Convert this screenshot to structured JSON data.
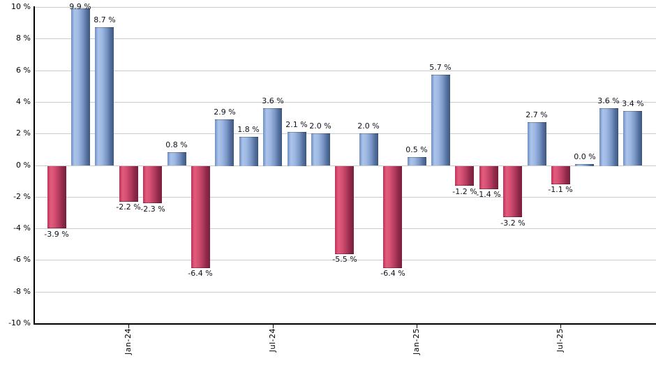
{
  "chart_data": {
    "type": "bar",
    "title": "",
    "xlabel": "",
    "ylabel": "",
    "ylim": [
      -10,
      10
    ],
    "y_step": 2,
    "grid": true,
    "legend": false,
    "values": [
      -3.9,
      9.9,
      8.7,
      -2.2,
      -2.3,
      0.8,
      -6.4,
      2.9,
      1.8,
      3.6,
      2.1,
      2.0,
      -5.5,
      2.0,
      -6.4,
      0.5,
      5.7,
      -1.2,
      -1.4,
      -3.2,
      2.7,
      -1.1,
      0.0,
      3.6,
      3.4
    ],
    "bar_labels": [
      "-3.9 %",
      "9.9 %",
      "8.7 %",
      "-2.2 %",
      "-2.3 %",
      "0.8 %",
      "-6.4 %",
      "2.9 %",
      "1.8 %",
      "3.6 %",
      "2.1 %",
      "2.0 %",
      "-5.5 %",
      "2.0 %",
      "-6.4 %",
      "0.5 %",
      "5.7 %",
      "-1.2 %",
      "-1.4 %",
      "-3.2 %",
      "2.7 %",
      "-1.1 %",
      "0.0 %",
      "3.6 %",
      "3.4 %"
    ],
    "x_tick_labels": [
      {
        "index": 3,
        "label": "Jan-24"
      },
      {
        "index": 9,
        "label": "Jul-24"
      },
      {
        "index": 15,
        "label": "Jan-25"
      },
      {
        "index": 21,
        "label": "Jul-25"
      }
    ],
    "y_tick_labels": [
      {
        "value": 10,
        "label": "10 %"
      },
      {
        "value": 8,
        "label": "8 %"
      },
      {
        "value": 6,
        "label": "6 %"
      },
      {
        "value": 4,
        "label": "4 %"
      },
      {
        "value": 2,
        "label": "2 %"
      },
      {
        "value": 0,
        "label": "0 %"
      },
      {
        "value": -2,
        "label": "-2 %"
      },
      {
        "value": -4,
        "label": "-4 %"
      },
      {
        "value": -6,
        "label": "-6 %"
      },
      {
        "value": -8,
        "label": "-8 %"
      },
      {
        "value": -10,
        "label": "-10 %"
      }
    ],
    "colors": {
      "positive_base": "#6d8ec5",
      "negative_base": "#c12f58",
      "positive_gradient": [
        "#6d8ec5 0%",
        "#abc4ea 18%",
        "#9db8e2 38%",
        "#7b97c7 62%",
        "#55719f 82%",
        "#3e5680 100%"
      ],
      "negative_gradient": [
        "#c12f58 0%",
        "#e25c7d 18%",
        "#d44f72 38%",
        "#b13a5e 62%",
        "#8d2848 82%",
        "#7a1f3d 100%"
      ],
      "gridline": "#cccccc",
      "axis": "#000000",
      "value_label": "#10101c"
    }
  }
}
